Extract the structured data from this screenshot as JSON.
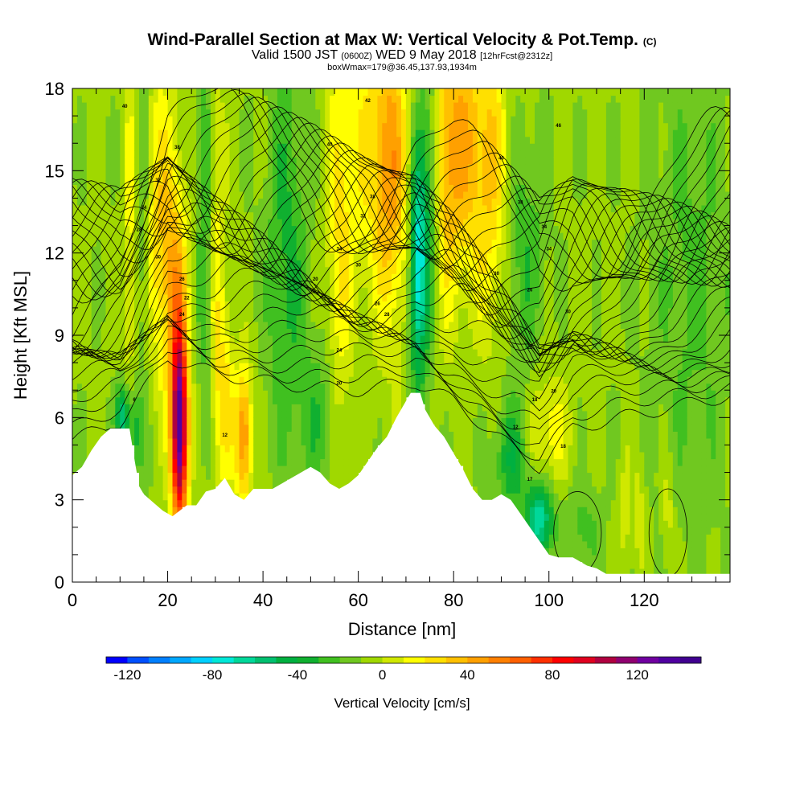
{
  "title": {
    "main": "Wind-Parallel Section at Max W: Vertical Velocity & Pot.Temp.",
    "main_tag": "(C)",
    "valid_prefix": "Valid 1500 JST",
    "valid_utc": "(0600Z)",
    "valid_date": "WED 9 May 2018",
    "forecast": "[12hrFcst@2312z]",
    "box_info": "boxWmax=179@36.45,137.93,1934m"
  },
  "chart_data": {
    "type": "heatmap",
    "xlabel": "Distance [nm]",
    "ylabel": "Height [Kft MSL]",
    "xlim": [
      0,
      138
    ],
    "ylim": [
      0,
      18
    ],
    "x_ticks": [
      0,
      20,
      40,
      60,
      80,
      100,
      120
    ],
    "y_ticks": [
      0,
      3,
      6,
      9,
      12,
      15,
      18
    ],
    "colorbar": {
      "label": "Vertical Velocity [cm/s]",
      "min": -130,
      "max": 150,
      "step": 10,
      "tick_values": [
        -120,
        -80,
        -40,
        0,
        40,
        80,
        120
      ],
      "colors": [
        "#0000ff",
        "#0050ff",
        "#0080ff",
        "#00a8ff",
        "#00d0ff",
        "#00e8d8",
        "#00d89a",
        "#00c070",
        "#00b040",
        "#10b030",
        "#40c020",
        "#70c820",
        "#a0d800",
        "#d0e800",
        "#ffff00",
        "#ffe000",
        "#ffc000",
        "#ffa000",
        "#ff8000",
        "#ff6000",
        "#ff3000",
        "#ff0000",
        "#e00020",
        "#b00040",
        "#900070",
        "#7000a0",
        "#5000a0",
        "#400090"
      ]
    },
    "terrain_profile": [
      {
        "x": 0,
        "h": 3.9
      },
      {
        "x": 2,
        "h": 4.2
      },
      {
        "x": 4,
        "h": 4.8
      },
      {
        "x": 6,
        "h": 5.3
      },
      {
        "x": 8,
        "h": 5.6
      },
      {
        "x": 12,
        "h": 5.6
      },
      {
        "x": 13,
        "h": 4.5
      },
      {
        "x": 14,
        "h": 3.5
      },
      {
        "x": 15,
        "h": 3.2
      },
      {
        "x": 17,
        "h": 2.9
      },
      {
        "x": 19,
        "h": 2.6
      },
      {
        "x": 21,
        "h": 2.4
      },
      {
        "x": 24,
        "h": 2.8
      },
      {
        "x": 26,
        "h": 2.8
      },
      {
        "x": 28,
        "h": 3.3
      },
      {
        "x": 30,
        "h": 3.4
      },
      {
        "x": 32,
        "h": 3.8
      },
      {
        "x": 34,
        "h": 3.2
      },
      {
        "x": 36,
        "h": 3.0
      },
      {
        "x": 38,
        "h": 3.4
      },
      {
        "x": 42,
        "h": 3.4
      },
      {
        "x": 44,
        "h": 3.6
      },
      {
        "x": 46,
        "h": 3.8
      },
      {
        "x": 48,
        "h": 4.0
      },
      {
        "x": 50,
        "h": 4.2
      },
      {
        "x": 52,
        "h": 4.0
      },
      {
        "x": 54,
        "h": 3.6
      },
      {
        "x": 56,
        "h": 3.4
      },
      {
        "x": 58,
        "h": 3.6
      },
      {
        "x": 60,
        "h": 3.9
      },
      {
        "x": 62,
        "h": 4.4
      },
      {
        "x": 64,
        "h": 4.9
      },
      {
        "x": 66,
        "h": 5.3
      },
      {
        "x": 68,
        "h": 6.0
      },
      {
        "x": 70,
        "h": 6.6
      },
      {
        "x": 71,
        "h": 6.9
      },
      {
        "x": 73,
        "h": 6.9
      },
      {
        "x": 74,
        "h": 6.3
      },
      {
        "x": 76,
        "h": 5.7
      },
      {
        "x": 78,
        "h": 5.3
      },
      {
        "x": 80,
        "h": 4.7
      },
      {
        "x": 82,
        "h": 4.1
      },
      {
        "x": 84,
        "h": 3.4
      },
      {
        "x": 86,
        "h": 3.0
      },
      {
        "x": 88,
        "h": 3.0
      },
      {
        "x": 90,
        "h": 3.2
      },
      {
        "x": 92,
        "h": 3.0
      },
      {
        "x": 94,
        "h": 2.5
      },
      {
        "x": 96,
        "h": 2.0
      },
      {
        "x": 98,
        "h": 1.5
      },
      {
        "x": 100,
        "h": 1.0
      },
      {
        "x": 102,
        "h": 0.9
      },
      {
        "x": 105,
        "h": 0.9
      },
      {
        "x": 108,
        "h": 0.6
      },
      {
        "x": 110,
        "h": 0.5
      },
      {
        "x": 112,
        "h": 0.3
      },
      {
        "x": 138,
        "h": 0.3
      }
    ],
    "w_bands": [
      {
        "x": 22.5,
        "y": 5.5,
        "sx": 1.2,
        "sy": 2.6,
        "w": 140
      },
      {
        "x": 21.5,
        "y": 10.5,
        "sx": 2.0,
        "sy": 3.2,
        "w": 40
      },
      {
        "x": 18.0,
        "y": 13.5,
        "sx": 2.5,
        "sy": 4.0,
        "w": 30
      },
      {
        "x": 36.0,
        "y": 5.3,
        "sx": 1.2,
        "sy": 1.8,
        "w": 60
      },
      {
        "x": 32.0,
        "y": 6.5,
        "sx": 1.5,
        "sy": 2.2,
        "w": 30
      },
      {
        "x": 30.0,
        "y": 12.0,
        "sx": 1.5,
        "sy": 5.0,
        "w": 25
      },
      {
        "x": 28.0,
        "y": 13.0,
        "sx": 1.2,
        "sy": 5.0,
        "w": -30
      },
      {
        "x": 12.0,
        "y": 13.0,
        "sx": 1.0,
        "sy": 5.0,
        "w": 20
      },
      {
        "x": 10.5,
        "y": 6.0,
        "sx": 1.0,
        "sy": 0.8,
        "w": -50
      },
      {
        "x": 13.0,
        "y": 5.5,
        "sx": 1.2,
        "sy": 1.2,
        "w": -30
      },
      {
        "x": 15.0,
        "y": 14.0,
        "sx": 1.0,
        "sy": 5.0,
        "w": -20
      },
      {
        "x": 45.0,
        "y": 12.0,
        "sx": 3.0,
        "sy": 5.0,
        "w": -25
      },
      {
        "x": 56.0,
        "y": 12.0,
        "sx": 2.0,
        "sy": 6.0,
        "w": 25
      },
      {
        "x": 52.0,
        "y": 6.0,
        "sx": 3.0,
        "sy": 2.0,
        "w": -20
      },
      {
        "x": 62.0,
        "y": 16.0,
        "sx": 4.0,
        "sy": 4.0,
        "w": 25
      },
      {
        "x": 67.0,
        "y": 15.0,
        "sx": 2.5,
        "sy": 4.0,
        "w": 45
      },
      {
        "x": 72.5,
        "y": 11.5,
        "sx": 1.2,
        "sy": 3.0,
        "w": -70
      },
      {
        "x": 75.0,
        "y": 14.0,
        "sx": 1.5,
        "sy": 4.0,
        "w": -30
      },
      {
        "x": 78.0,
        "y": 15.0,
        "sx": 2.0,
        "sy": 4.0,
        "w": 30
      },
      {
        "x": 82.0,
        "y": 16.0,
        "sx": 3.0,
        "sy": 3.5,
        "w": 45
      },
      {
        "x": 88.0,
        "y": 15.0,
        "sx": 2.5,
        "sy": 4.0,
        "w": 35
      },
      {
        "x": 95.0,
        "y": 12.0,
        "sx": 3.0,
        "sy": 3.0,
        "w": -20
      },
      {
        "x": 98.0,
        "y": 2.3,
        "sx": 2.0,
        "sy": 1.0,
        "w": -60
      },
      {
        "x": 92.0,
        "y": 4.5,
        "sx": 2.5,
        "sy": 1.5,
        "w": -30
      },
      {
        "x": 100.0,
        "y": 5.5,
        "sx": 3.0,
        "sy": 1.5,
        "w": 25
      },
      {
        "x": 116.0,
        "y": 2.5,
        "sx": 0.9,
        "sy": 1.5,
        "w": 15
      },
      {
        "x": 119.0,
        "y": 2.5,
        "sx": 0.9,
        "sy": 1.5,
        "w": 15
      },
      {
        "x": 125.0,
        "y": 2.5,
        "sx": 0.9,
        "sy": 1.5,
        "w": 15
      },
      {
        "x": 107.0,
        "y": 2.0,
        "sx": 3.0,
        "sy": 1.2,
        "w": -15
      },
      {
        "x": 130.0,
        "y": 11.0,
        "sx": 6.0,
        "sy": 6.0,
        "w": -15
      }
    ],
    "theta_contours": {
      "base_height": [
        {
          "x": 0,
          "h": 5.2
        },
        {
          "x": 10,
          "h": 5.8
        },
        {
          "x": 15,
          "h": 7.0
        },
        {
          "x": 20,
          "h": 8.2
        },
        {
          "x": 30,
          "h": 7.6
        },
        {
          "x": 45,
          "h": 7.2
        },
        {
          "x": 60,
          "h": 7.0
        },
        {
          "x": 72,
          "h": 7.3
        },
        {
          "x": 80,
          "h": 6.6
        },
        {
          "x": 90,
          "h": 5.2
        },
        {
          "x": 98,
          "h": 4.2
        },
        {
          "x": 105,
          "h": 5.6
        },
        {
          "x": 115,
          "h": 6.0
        },
        {
          "x": 138,
          "h": 6.8
        }
      ],
      "count": 36,
      "spacing_kft": 0.38,
      "labels": [
        {
          "x": 11,
          "y": 17.3,
          "text": "40"
        },
        {
          "x": 22,
          "y": 15.8,
          "text": "38"
        },
        {
          "x": 18,
          "y": 14.6,
          "text": "32"
        },
        {
          "x": 15,
          "y": 13.6,
          "text": "34"
        },
        {
          "x": 14,
          "y": 12.8,
          "text": "28"
        },
        {
          "x": 18,
          "y": 11.8,
          "text": "30"
        },
        {
          "x": 23,
          "y": 11.0,
          "text": "26"
        },
        {
          "x": 24,
          "y": 10.3,
          "text": "22"
        },
        {
          "x": 23,
          "y": 9.7,
          "text": "24"
        },
        {
          "x": 13,
          "y": 6.6,
          "text": "6"
        },
        {
          "x": 32,
          "y": 5.3,
          "text": "12"
        },
        {
          "x": 62,
          "y": 17.5,
          "text": "42"
        },
        {
          "x": 54,
          "y": 15.9,
          "text": "40"
        },
        {
          "x": 63,
          "y": 14.0,
          "text": "38"
        },
        {
          "x": 61,
          "y": 13.3,
          "text": "32"
        },
        {
          "x": 56,
          "y": 12.1,
          "text": "34"
        },
        {
          "x": 60,
          "y": 11.5,
          "text": "30"
        },
        {
          "x": 51,
          "y": 11.0,
          "text": "20"
        },
        {
          "x": 64,
          "y": 10.1,
          "text": "26"
        },
        {
          "x": 66,
          "y": 9.7,
          "text": "28"
        },
        {
          "x": 56,
          "y": 8.4,
          "text": "24"
        },
        {
          "x": 56,
          "y": 7.2,
          "text": "20"
        },
        {
          "x": 102,
          "y": 16.6,
          "text": "46"
        },
        {
          "x": 90,
          "y": 15.4,
          "text": "40"
        },
        {
          "x": 94,
          "y": 13.8,
          "text": "38"
        },
        {
          "x": 99,
          "y": 12.9,
          "text": "34"
        },
        {
          "x": 100,
          "y": 12.1,
          "text": "34"
        },
        {
          "x": 89,
          "y": 11.2,
          "text": "30"
        },
        {
          "x": 96,
          "y": 10.6,
          "text": "26"
        },
        {
          "x": 104,
          "y": 9.8,
          "text": "30"
        },
        {
          "x": 96,
          "y": 8.5,
          "text": "22"
        },
        {
          "x": 101,
          "y": 6.9,
          "text": "20"
        },
        {
          "x": 97,
          "y": 6.6,
          "text": "18"
        },
        {
          "x": 93,
          "y": 5.6,
          "text": "12"
        },
        {
          "x": 103,
          "y": 4.9,
          "text": "18"
        },
        {
          "x": 96,
          "y": 3.7,
          "text": "17"
        }
      ]
    }
  }
}
